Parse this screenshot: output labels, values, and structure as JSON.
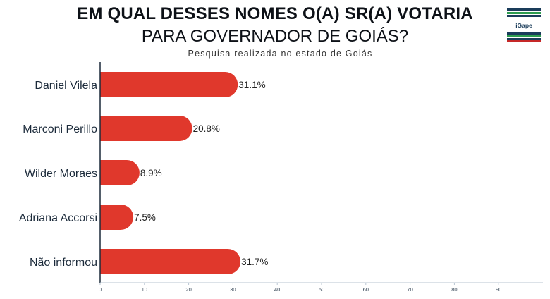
{
  "header": {
    "title_line1": "EM QUAL DESSES NOMES O(A) SR(A) VOTARIA",
    "title_line2": "PARA GOVERNADOR DE GOIÁS?",
    "subtitle": "Pesquisa realizada no estado de Goiás"
  },
  "logo": {
    "text": "iGape"
  },
  "colors": {
    "bar": "#e0382c",
    "axis": "#1b2a3a",
    "text": "#1b2a3a"
  },
  "chart_data": {
    "type": "bar",
    "orientation": "horizontal",
    "categories": [
      "Daniel Vilela",
      "Marconi Perillo",
      "Wilder Moraes",
      "Adriana Accorsi",
      "Não informou"
    ],
    "values": [
      31.1,
      20.8,
      8.9,
      7.5,
      31.7
    ],
    "value_labels": [
      "31.1%",
      "20.8%",
      "8.9%",
      "7.5%",
      "31.7%"
    ],
    "xlim": [
      0,
      100
    ],
    "x_ticks": [
      0,
      10,
      20,
      30,
      40,
      50,
      60,
      70,
      80,
      90
    ],
    "grid": false
  }
}
